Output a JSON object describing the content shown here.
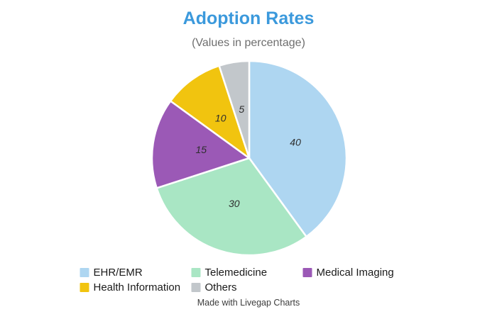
{
  "header": {
    "title": "Adoption Rates",
    "subtitle": "(Values in percentage)"
  },
  "chart_data": {
    "type": "pie",
    "title": "Adoption Rates",
    "subtitle": "(Values in percentage)",
    "unit": "percentage",
    "categories": [
      "EHR/EMR",
      "Telemedicine",
      "Medical Imaging",
      "Health Information",
      "Others"
    ],
    "values": [
      40,
      30,
      15,
      10,
      5
    ],
    "slice_labels": [
      "40",
      "30",
      "15",
      "10",
      "5"
    ],
    "colors": [
      "#AED6F1",
      "#A9E6C4",
      "#9B59B6",
      "#F1C40F",
      "#C2C7CB"
    ],
    "start_angle_deg": 0,
    "direction": "clockwise",
    "legend_position": "bottom",
    "grid": false
  },
  "footer": {
    "credit": "Made with Livegap Charts"
  },
  "style": {
    "background": "#ffffff",
    "title_color": "#3B99DC",
    "subtitle_color": "#6E6E6E",
    "label_color": "#2E2E2E",
    "legend_text_color": "#1A1A1A",
    "footer_color": "#3C3C3C",
    "slice_stroke": "#FFFFFF"
  }
}
